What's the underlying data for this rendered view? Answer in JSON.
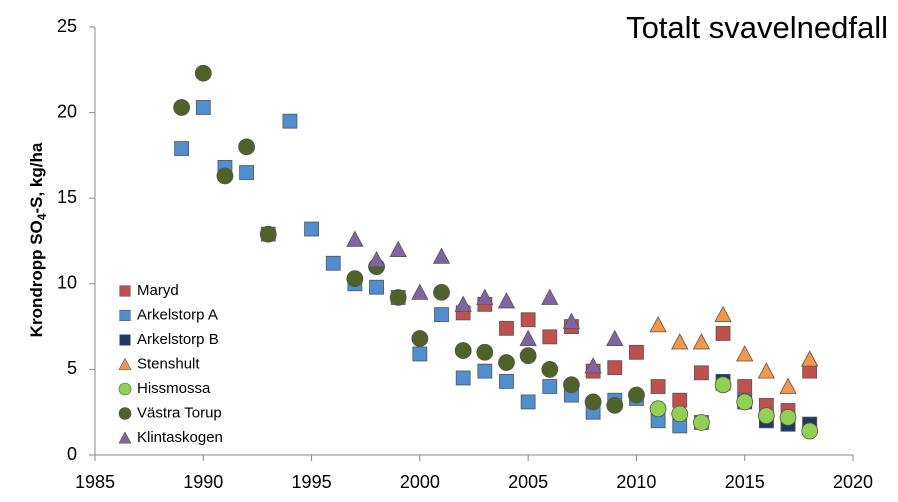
{
  "chart_data": {
    "type": "scatter",
    "title": "Totalt svavelnedfall",
    "y_label_parts": [
      "Krondropp SO",
      "4",
      "-S, kg/ha"
    ],
    "xlim": [
      1985,
      2020
    ],
    "xticks": [
      1985,
      1990,
      1995,
      2000,
      2005,
      2010,
      2015,
      2020
    ],
    "ylim": [
      0,
      25
    ],
    "yticks": [
      0,
      5,
      10,
      15,
      20,
      25
    ],
    "legend": "left",
    "series": [
      {
        "name": "Maryd",
        "color": "#c0504d",
        "marker": "square",
        "x": [
          2002,
          2003,
          2004,
          2005,
          2006,
          2007,
          2008,
          2009,
          2010,
          2011,
          2012,
          2013,
          2014,
          2015,
          2016,
          2017,
          2018
        ],
        "values": [
          8.3,
          8.8,
          7.4,
          7.9,
          6.9,
          7.5,
          4.9,
          5.1,
          6.0,
          4.0,
          3.2,
          4.8,
          7.1,
          4.0,
          2.9,
          2.6,
          4.9
        ]
      },
      {
        "name": "Arkelstorp A",
        "color": "#4f8fd0",
        "marker": "square",
        "x": [
          1989,
          1990,
          1991,
          1992,
          1993,
          1994,
          1995,
          1996,
          1997,
          1998,
          1999,
          2000,
          2001,
          2002,
          2003,
          2004,
          2005,
          2006,
          2007,
          2008,
          2009,
          2010,
          2011,
          2012,
          2013,
          2014,
          2015,
          2016,
          2017,
          2018
        ],
        "values": [
          17.9,
          20.3,
          16.8,
          16.5,
          12.9,
          19.5,
          13.2,
          11.2,
          10.0,
          9.8,
          9.2,
          5.9,
          8.2,
          4.5,
          4.9,
          4.3,
          3.1,
          4.0,
          3.5,
          2.5,
          3.2,
          3.3,
          2.0,
          1.7,
          1.9,
          4.2,
          3.2,
          2.0,
          1.8,
          1.8
        ]
      },
      {
        "name": "Arkelstorp B",
        "color": "#1f3864",
        "marker": "square",
        "x": [
          2014,
          2015,
          2016,
          2017,
          2018
        ],
        "values": [
          4.3,
          3.1,
          2.0,
          1.8,
          1.8
        ]
      },
      {
        "name": "Stenshult",
        "color": "#f79646",
        "marker": "triangle",
        "x": [
          2011,
          2012,
          2013,
          2014,
          2015,
          2016,
          2017,
          2018
        ],
        "values": [
          7.6,
          6.6,
          6.6,
          8.2,
          5.9,
          4.9,
          4.0,
          5.6
        ]
      },
      {
        "name": "Hissmossa",
        "color": "#92d050",
        "marker": "circle",
        "x": [
          2011,
          2012,
          2013,
          2014,
          2015,
          2016,
          2017,
          2018
        ],
        "values": [
          2.7,
          2.4,
          1.9,
          4.1,
          3.1,
          2.3,
          2.2,
          1.4
        ]
      },
      {
        "name": "Västra Torup",
        "color": "#4f6228",
        "marker": "circle",
        "x": [
          1989,
          1990,
          1991,
          1992,
          1993,
          1997,
          1998,
          1999,
          2000,
          2001,
          2002,
          2003,
          2004,
          2005,
          2006,
          2007,
          2008,
          2009,
          2010
        ],
        "values": [
          20.3,
          22.3,
          16.3,
          18.0,
          12.9,
          10.3,
          11.0,
          9.2,
          6.8,
          9.5,
          6.1,
          6.0,
          5.4,
          5.8,
          5.0,
          4.1,
          3.1,
          2.9,
          3.5
        ]
      },
      {
        "name": "Klintaskogen",
        "color": "#8064a2",
        "marker": "triangle",
        "x": [
          1997,
          1998,
          1999,
          2000,
          2001,
          2002,
          2003,
          2004,
          2005,
          2006,
          2007,
          2008,
          2009
        ],
        "values": [
          12.6,
          11.4,
          12.0,
          9.5,
          11.6,
          8.8,
          9.2,
          9.0,
          6.8,
          9.2,
          7.8,
          5.2,
          6.8
        ]
      }
    ]
  }
}
